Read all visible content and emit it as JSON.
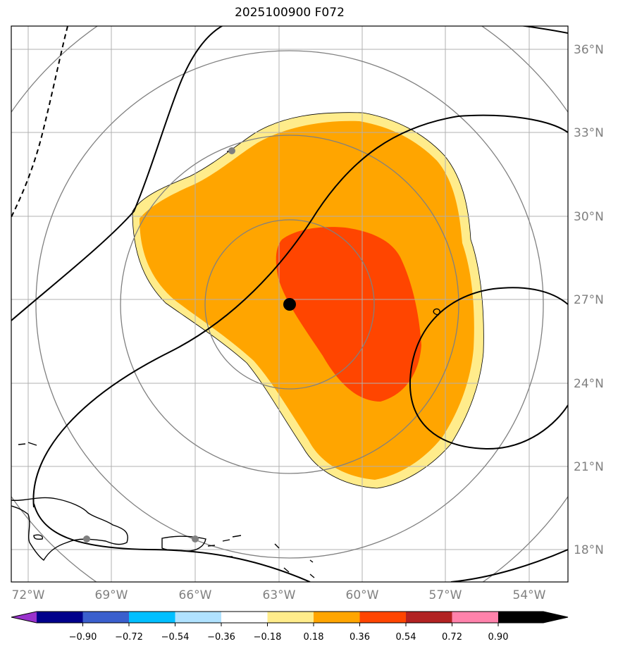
{
  "title": "2025100900 F072",
  "map": {
    "lon_labels": [
      "72°W",
      "69°W",
      "66°W",
      "63°W",
      "60°W",
      "57°W",
      "54°W"
    ],
    "lat_labels": [
      "36°N",
      "33°N",
      "30°N",
      "27°N",
      "24°N",
      "21°N",
      "18°N"
    ]
  },
  "colorbar": {
    "colors": [
      "#9932cc",
      "#00008b",
      "#3a5fcd",
      "#00bfff",
      "#b0e2ff",
      "#ffffff",
      "#ffec8b",
      "#ffa500",
      "#ff4500",
      "#b22222",
      "#ff82ab"
    ],
    "tick_labels": [
      "−0.90",
      "−0.72",
      "−0.54",
      "−0.36",
      "−0.18",
      "0.18",
      "0.36",
      "0.54",
      "0.72",
      "0.90"
    ]
  },
  "markers": {
    "center_color": "#000000",
    "station_color": "#808080"
  },
  "fill_colors": {
    "outer": "#ffec8b",
    "middle": "#ffa500",
    "inner": "#ff4500"
  }
}
